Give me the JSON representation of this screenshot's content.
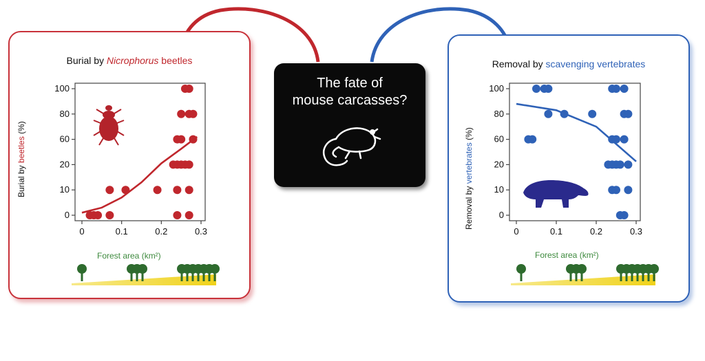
{
  "center": {
    "line1": "The fate of",
    "line2": "mouse carcasses?"
  },
  "left_panel": {
    "title_pre": "Burial by ",
    "title_em": "Nicrophorus",
    "title_post": " beetles",
    "ylabel_pre": "Burial by ",
    "ylabel_colored": "beetles",
    "ylabel_post": " (%)",
    "xlabel": "Forest area (km²)",
    "beetle_icon": "beetle-icon",
    "color": "#c0272d"
  },
  "right_panel": {
    "title_pre": "Removal by ",
    "title_colored": "scavenging vertebrates",
    "ylabel_pre": "Removal by ",
    "ylabel_colored": "vertebrates",
    "ylabel_post": " (%)",
    "xlabel": "Forest area (km²)",
    "animal_icon": "badger-icon",
    "color": "#2f62b7"
  },
  "chart_data": [
    {
      "type": "scatter",
      "title": "Burial by Nicrophorus beetles",
      "xlabel": "Forest area (km²)",
      "ylabel": "Burial by beetles (%)",
      "x_ticks": [
        "0",
        "0.1",
        "0.2",
        "0.3"
      ],
      "y_ticks": [
        "0",
        "10",
        "20",
        "60",
        "80",
        "100"
      ],
      "xlim": [
        0,
        0.3
      ],
      "points": [
        {
          "x": 0.02,
          "y": 0
        },
        {
          "x": 0.03,
          "y": 0
        },
        {
          "x": 0.04,
          "y": 0
        },
        {
          "x": 0.07,
          "y": 0
        },
        {
          "x": 0.07,
          "y": 10
        },
        {
          "x": 0.11,
          "y": 10
        },
        {
          "x": 0.19,
          "y": 10
        },
        {
          "x": 0.23,
          "y": 20
        },
        {
          "x": 0.24,
          "y": 20
        },
        {
          "x": 0.25,
          "y": 20
        },
        {
          "x": 0.26,
          "y": 20
        },
        {
          "x": 0.27,
          "y": 20
        },
        {
          "x": 0.24,
          "y": 0
        },
        {
          "x": 0.27,
          "y": 0
        },
        {
          "x": 0.24,
          "y": 10
        },
        {
          "x": 0.27,
          "y": 10
        },
        {
          "x": 0.24,
          "y": 60
        },
        {
          "x": 0.25,
          "y": 60
        },
        {
          "x": 0.28,
          "y": 60
        },
        {
          "x": 0.25,
          "y": 80
        },
        {
          "x": 0.27,
          "y": 80
        },
        {
          "x": 0.28,
          "y": 80
        },
        {
          "x": 0.26,
          "y": 100
        },
        {
          "x": 0.27,
          "y": 100
        }
      ],
      "trend": [
        [
          0.0,
          1
        ],
        [
          0.05,
          3
        ],
        [
          0.1,
          7
        ],
        [
          0.15,
          13
        ],
        [
          0.2,
          22
        ],
        [
          0.25,
          45
        ],
        [
          0.29,
          62
        ]
      ],
      "color": "#c0272d"
    },
    {
      "type": "scatter",
      "title": "Removal by scavenging vertebrates",
      "xlabel": "Forest area (km²)",
      "ylabel": "Removal by vertebrates (%)",
      "x_ticks": [
        "0",
        "0.1",
        "0.2",
        "0.3"
      ],
      "y_ticks": [
        "0",
        "10",
        "20",
        "60",
        "80",
        "100"
      ],
      "xlim": [
        0,
        0.3
      ],
      "points": [
        {
          "x": 0.03,
          "y": 60
        },
        {
          "x": 0.04,
          "y": 60
        },
        {
          "x": 0.05,
          "y": 100
        },
        {
          "x": 0.07,
          "y": 100
        },
        {
          "x": 0.08,
          "y": 100
        },
        {
          "x": 0.08,
          "y": 80
        },
        {
          "x": 0.12,
          "y": 80
        },
        {
          "x": 0.19,
          "y": 80
        },
        {
          "x": 0.24,
          "y": 100
        },
        {
          "x": 0.25,
          "y": 100
        },
        {
          "x": 0.27,
          "y": 100
        },
        {
          "x": 0.27,
          "y": 80
        },
        {
          "x": 0.28,
          "y": 80
        },
        {
          "x": 0.24,
          "y": 60
        },
        {
          "x": 0.25,
          "y": 60
        },
        {
          "x": 0.27,
          "y": 60
        },
        {
          "x": 0.23,
          "y": 20
        },
        {
          "x": 0.24,
          "y": 20
        },
        {
          "x": 0.25,
          "y": 20
        },
        {
          "x": 0.26,
          "y": 20
        },
        {
          "x": 0.28,
          "y": 20
        },
        {
          "x": 0.24,
          "y": 10
        },
        {
          "x": 0.25,
          "y": 10
        },
        {
          "x": 0.28,
          "y": 10
        },
        {
          "x": 0.26,
          "y": 0
        },
        {
          "x": 0.27,
          "y": 0
        }
      ],
      "trend": [
        [
          0.0,
          88
        ],
        [
          0.1,
          83
        ],
        [
          0.2,
          70
        ],
        [
          0.3,
          25
        ]
      ],
      "color": "#2f62b7"
    }
  ]
}
